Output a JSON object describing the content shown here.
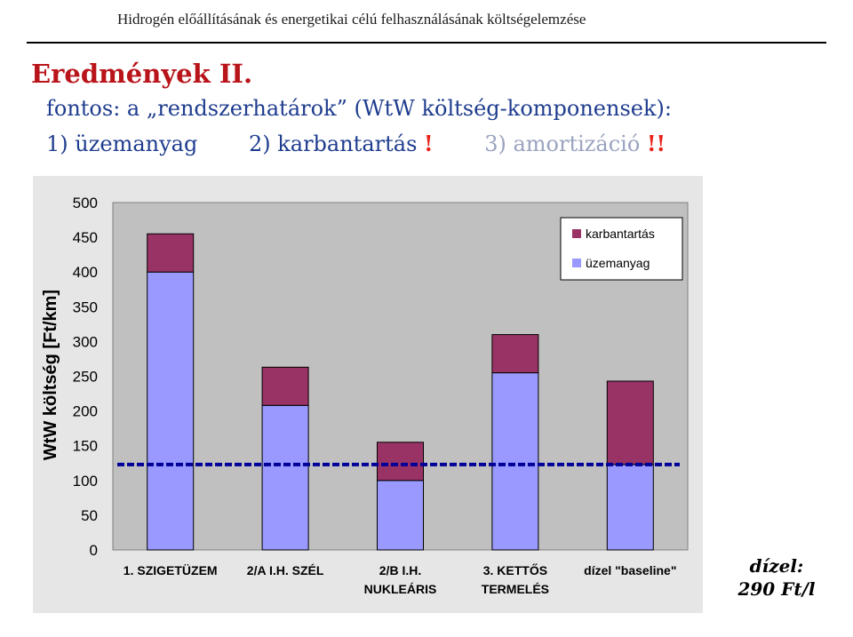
{
  "header": {
    "text": "Hidrogén előállításának és energetikai célú felhasználásának költségelemzése"
  },
  "slide": {
    "title": "Eredmények II.",
    "line1": "fontos: a „rendszerhatárok” (WtW költség-komponensek):",
    "item1": "1) üzemanyag",
    "item2": "2) karbantartás",
    "item3": "3) amortizáció",
    "bang1": "!",
    "bang2": "!!"
  },
  "diesel_note": {
    "label": "dízel:",
    "value": "290 Ft/l"
  },
  "colors": {
    "fuel": "#9999ff",
    "maintenance": "#993366",
    "plot_bg": "#c0c0c0",
    "panel_bg": "#e6e6e6",
    "baseline": "#000099"
  },
  "chart_data": {
    "type": "bar",
    "stacked": true,
    "categories": [
      [
        "1. SZIGETÜZEM"
      ],
      [
        "2/A I.H. SZÉL"
      ],
      [
        "2/B I.H.",
        "NUKLEÁRIS"
      ],
      [
        "3. KETTŐS",
        "TERMELÉS"
      ],
      [
        "dízel \"baseline\""
      ]
    ],
    "series": [
      {
        "name": "üzemanyag",
        "values": [
          400,
          208,
          100,
          255,
          123
        ],
        "color": "#9999ff"
      },
      {
        "name": "karbantartás",
        "values": [
          55,
          55,
          55,
          55,
          120
        ],
        "color": "#993366"
      }
    ],
    "reference_line": {
      "value": 123,
      "style": "dashed"
    },
    "ylabel": "WtW költség [Ft/km]",
    "xlabel": "",
    "ylim": [
      0,
      500
    ],
    "yticks": [
      0,
      50,
      100,
      150,
      200,
      250,
      300,
      350,
      400,
      450,
      500
    ],
    "grid": false,
    "legend": {
      "placement": "top-right",
      "entries": [
        "karbantartás",
        "üzemanyag"
      ]
    }
  }
}
